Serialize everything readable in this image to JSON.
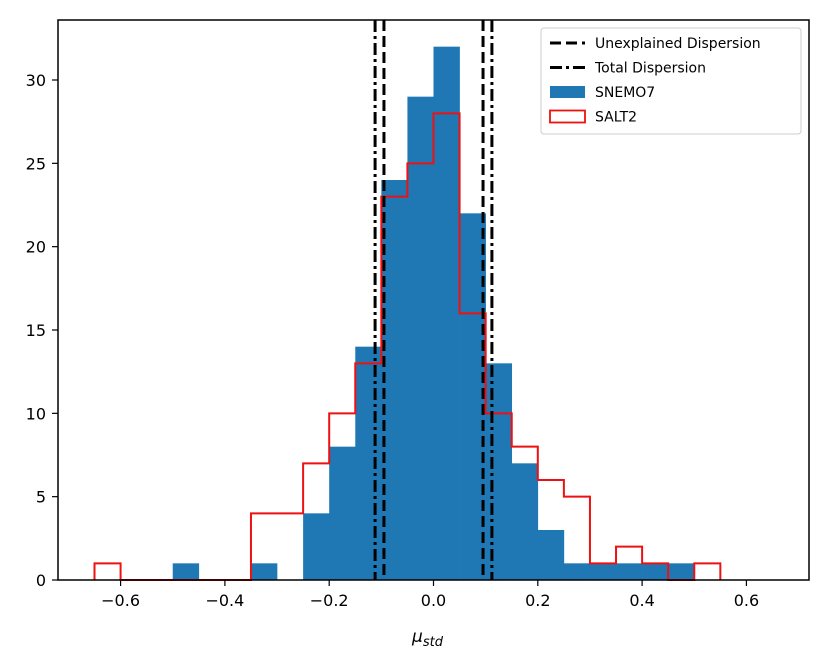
{
  "chart_data": {
    "type": "bar",
    "subtype": "histogram",
    "xlabel": "μ",
    "xlabel_sub": "std",
    "xlim": [
      -0.72,
      0.72
    ],
    "ylim": [
      0,
      33.6
    ],
    "x_ticks": [
      -0.6,
      -0.4,
      -0.2,
      0.0,
      0.2,
      0.4,
      0.6
    ],
    "x_tick_labels": [
      "−0.6",
      "−0.4",
      "−0.2",
      "0.0",
      "0.2",
      "0.4",
      "0.6"
    ],
    "y_ticks": [
      0,
      5,
      10,
      15,
      20,
      25,
      30
    ],
    "y_tick_labels": [
      "0",
      "5",
      "10",
      "15",
      "20",
      "25",
      "30"
    ],
    "bin_width": 0.05,
    "series": [
      {
        "name": "SNEMO7",
        "style": "filled",
        "color": "#1f77b4",
        "bin_starts": [
          -0.5,
          -0.35,
          -0.25,
          -0.2,
          -0.15,
          -0.1,
          -0.05,
          0.0,
          0.05,
          0.1,
          0.15,
          0.2,
          0.25,
          0.3,
          0.35,
          0.4,
          0.45
        ],
        "values": [
          1,
          1,
          4,
          8,
          14,
          24,
          29,
          32,
          22,
          13,
          7,
          3,
          1,
          1,
          1,
          1,
          1
        ]
      },
      {
        "name": "SALT2",
        "style": "step",
        "color": "#ee1111",
        "bin_starts": [
          -0.65,
          -0.6,
          -0.55,
          -0.5,
          -0.45,
          -0.4,
          -0.35,
          -0.3,
          -0.25,
          -0.2,
          -0.15,
          -0.1,
          -0.05,
          0.0,
          0.05,
          0.1,
          0.15,
          0.2,
          0.25,
          0.3,
          0.35,
          0.4,
          0.45,
          0.5
        ],
        "values": [
          1,
          0,
          0,
          0,
          0,
          0,
          4,
          4,
          7,
          10,
          13,
          23,
          25,
          28,
          16,
          10,
          8,
          6,
          5,
          1,
          2,
          1,
          0,
          1
        ]
      }
    ],
    "vlines": [
      {
        "name": "Unexplained Dispersion",
        "style": "dashed",
        "color": "#000000",
        "x": [
          -0.095,
          0.095
        ]
      },
      {
        "name": "Total Dispersion",
        "style": "dashdot",
        "color": "#000000",
        "x": [
          -0.112,
          0.112
        ]
      }
    ],
    "legend": {
      "placement": "top-right",
      "entries": [
        "Unexplained Dispersion",
        "Total Dispersion",
        "SNEMO7",
        "SALT2"
      ]
    },
    "grid": false
  }
}
